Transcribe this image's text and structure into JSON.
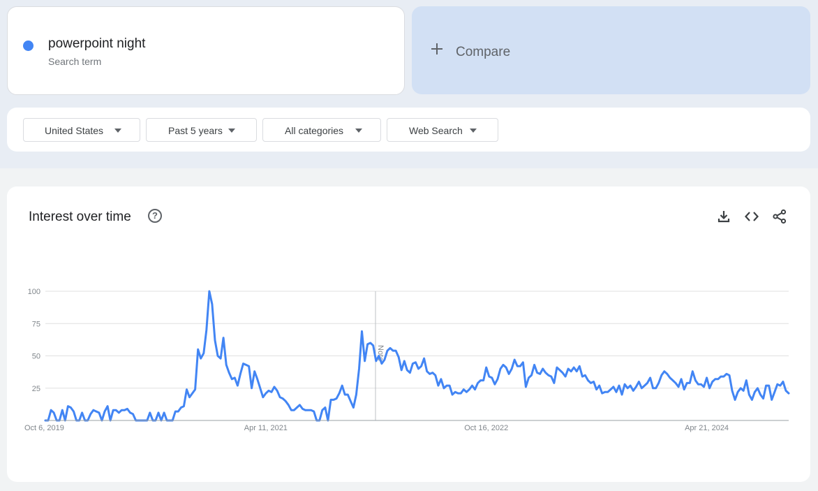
{
  "search_term": {
    "name": "powerpoint night",
    "type_label": "Search term",
    "color": "#4285f4"
  },
  "compare": {
    "label": "Compare"
  },
  "filters": [
    {
      "label": "United States"
    },
    {
      "label": "Past 5 years"
    },
    {
      "label": "All categories"
    },
    {
      "label": "Web Search"
    }
  ],
  "chart_panel": {
    "title": "Interest over time",
    "help_icon": "help-circle-icon",
    "tools": [
      "download-icon",
      "embed-code-icon",
      "share-icon"
    ]
  },
  "chart_data": {
    "type": "line",
    "title": "Interest over time",
    "xlabel": "",
    "ylabel": "",
    "ylim": [
      0,
      100
    ],
    "yticks": [
      25,
      50,
      75,
      100
    ],
    "xticks": [
      "Oct 6, 2019",
      "Apr 11, 2021",
      "Oct 16, 2022",
      "Apr 21, 2024"
    ],
    "note_label": "Note",
    "grid": true,
    "series": [
      {
        "name": "powerpoint night",
        "color": "#4285f4",
        "values": [
          0,
          0,
          8,
          6,
          0,
          0,
          8,
          0,
          11,
          10,
          7,
          0,
          0,
          6,
          0,
          0,
          5,
          8,
          7,
          6,
          0,
          7,
          11,
          0,
          8,
          8,
          6,
          8,
          8,
          9,
          6,
          5,
          0,
          0,
          0,
          0,
          0,
          6,
          0,
          0,
          6,
          0,
          6,
          0,
          0,
          0,
          7,
          7,
          10,
          11,
          24,
          18,
          21,
          24,
          55,
          48,
          52,
          70,
          100,
          90,
          62,
          50,
          48,
          64,
          43,
          37,
          32,
          33,
          27,
          36,
          44,
          43,
          42,
          25,
          38,
          32,
          25,
          18,
          21,
          23,
          22,
          26,
          23,
          18,
          17,
          15,
          12,
          8,
          8,
          10,
          12,
          9,
          8,
          8,
          8,
          7,
          0,
          0,
          8,
          10,
          0,
          16,
          16,
          17,
          21,
          27,
          20,
          20,
          15,
          10,
          20,
          40,
          69,
          46,
          59,
          60,
          58,
          46,
          50,
          44,
          47,
          54,
          56,
          54,
          54,
          49,
          39,
          46,
          39,
          37,
          44,
          45,
          40,
          42,
          48,
          38,
          36,
          37,
          35,
          27,
          32,
          25,
          27,
          27,
          20,
          22,
          21,
          21,
          24,
          22,
          24,
          27,
          24,
          29,
          31,
          31,
          41,
          34,
          33,
          28,
          32,
          40,
          43,
          41,
          36,
          40,
          47,
          42,
          42,
          45,
          26,
          33,
          35,
          43,
          37,
          36,
          40,
          37,
          35,
          34,
          29,
          41,
          39,
          37,
          34,
          40,
          38,
          41,
          38,
          42,
          34,
          35,
          31,
          29,
          30,
          24,
          27,
          21,
          22,
          22,
          24,
          26,
          22,
          27,
          20,
          28,
          25,
          27,
          23,
          26,
          30,
          25,
          27,
          29,
          33,
          25,
          25,
          29,
          35,
          38,
          36,
          33,
          31,
          29,
          26,
          32,
          24,
          29,
          29,
          38,
          31,
          28,
          28,
          26,
          33,
          25,
          30,
          32,
          32,
          34,
          34,
          36,
          35,
          23,
          16,
          22,
          25,
          23,
          31,
          20,
          16,
          22,
          25,
          20,
          17,
          27,
          27,
          16,
          22,
          28,
          27,
          30,
          23,
          21
        ]
      }
    ]
  }
}
